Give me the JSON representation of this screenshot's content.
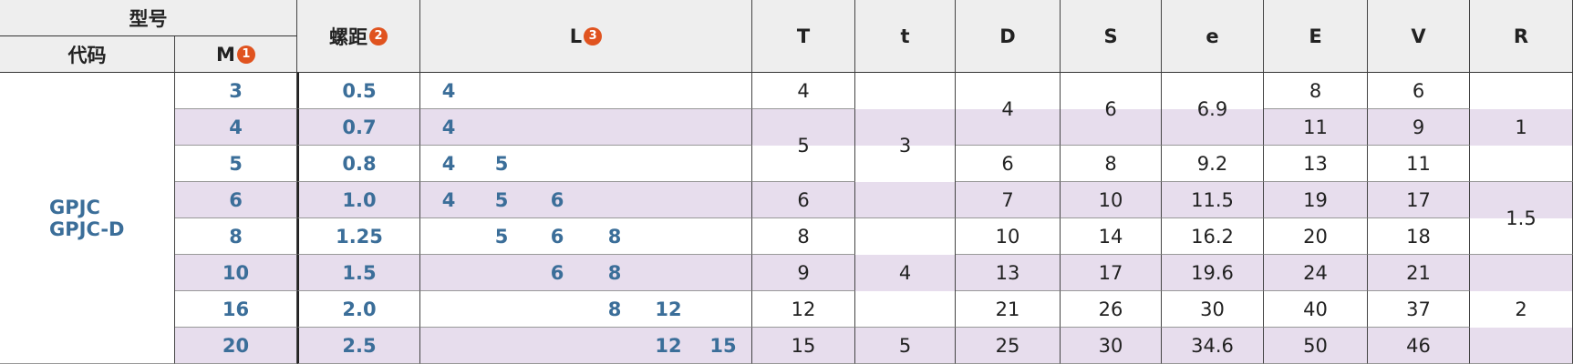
{
  "header": {
    "model": "型号",
    "code": "代码",
    "m": "M",
    "m_badge": "1",
    "pitch": "螺距",
    "pitch_badge": "2",
    "l": "L",
    "l_badge": "3",
    "cols": [
      "T",
      "t",
      "D",
      "S",
      "e",
      "E",
      "V",
      "R"
    ]
  },
  "code": [
    "GPJC",
    "GPJC-D"
  ],
  "rows": [
    {
      "m": "3",
      "pitch": "0.5",
      "l": [
        "4"
      ],
      "cells": [
        "4",
        "3",
        "4",
        "6",
        "6.9",
        "8",
        "6",
        "1"
      ]
    },
    {
      "m": "4",
      "pitch": "0.7",
      "l": [
        "4"
      ],
      "cells": [
        "5",
        null,
        null,
        null,
        null,
        "11",
        "9",
        null
      ]
    },
    {
      "m": "5",
      "pitch": "0.8",
      "l": [
        "4",
        "5"
      ],
      "cells": [
        null,
        null,
        "6",
        "8",
        "9.2",
        "13",
        "11",
        null
      ]
    },
    {
      "m": "6",
      "pitch": "1.0",
      "l": [
        "4",
        "5",
        "6"
      ],
      "cells": [
        "6",
        null,
        "7",
        "10",
        "11.5",
        "19",
        "17",
        "1.5"
      ]
    },
    {
      "m": "8",
      "pitch": "1.25",
      "l": [
        "5",
        "6",
        "8"
      ],
      "cells": [
        "8",
        "4",
        "10",
        "14",
        "16.2",
        "20",
        "18",
        null
      ]
    },
    {
      "m": "10",
      "pitch": "1.5",
      "l": [
        "6",
        "8"
      ],
      "cells": [
        "9",
        null,
        "13",
        "17",
        "19.6",
        "24",
        "21",
        "2"
      ]
    },
    {
      "m": "16",
      "pitch": "2.0",
      "l": [
        "8",
        "12"
      ],
      "cells": [
        "12",
        null,
        "21",
        "26",
        "30",
        "40",
        "37",
        null
      ]
    },
    {
      "m": "20",
      "pitch": "2.5",
      "l": [
        "12",
        "15"
      ],
      "cells": [
        "15",
        "5",
        "25",
        "30",
        "34.6",
        "50",
        "46",
        null
      ]
    }
  ]
}
